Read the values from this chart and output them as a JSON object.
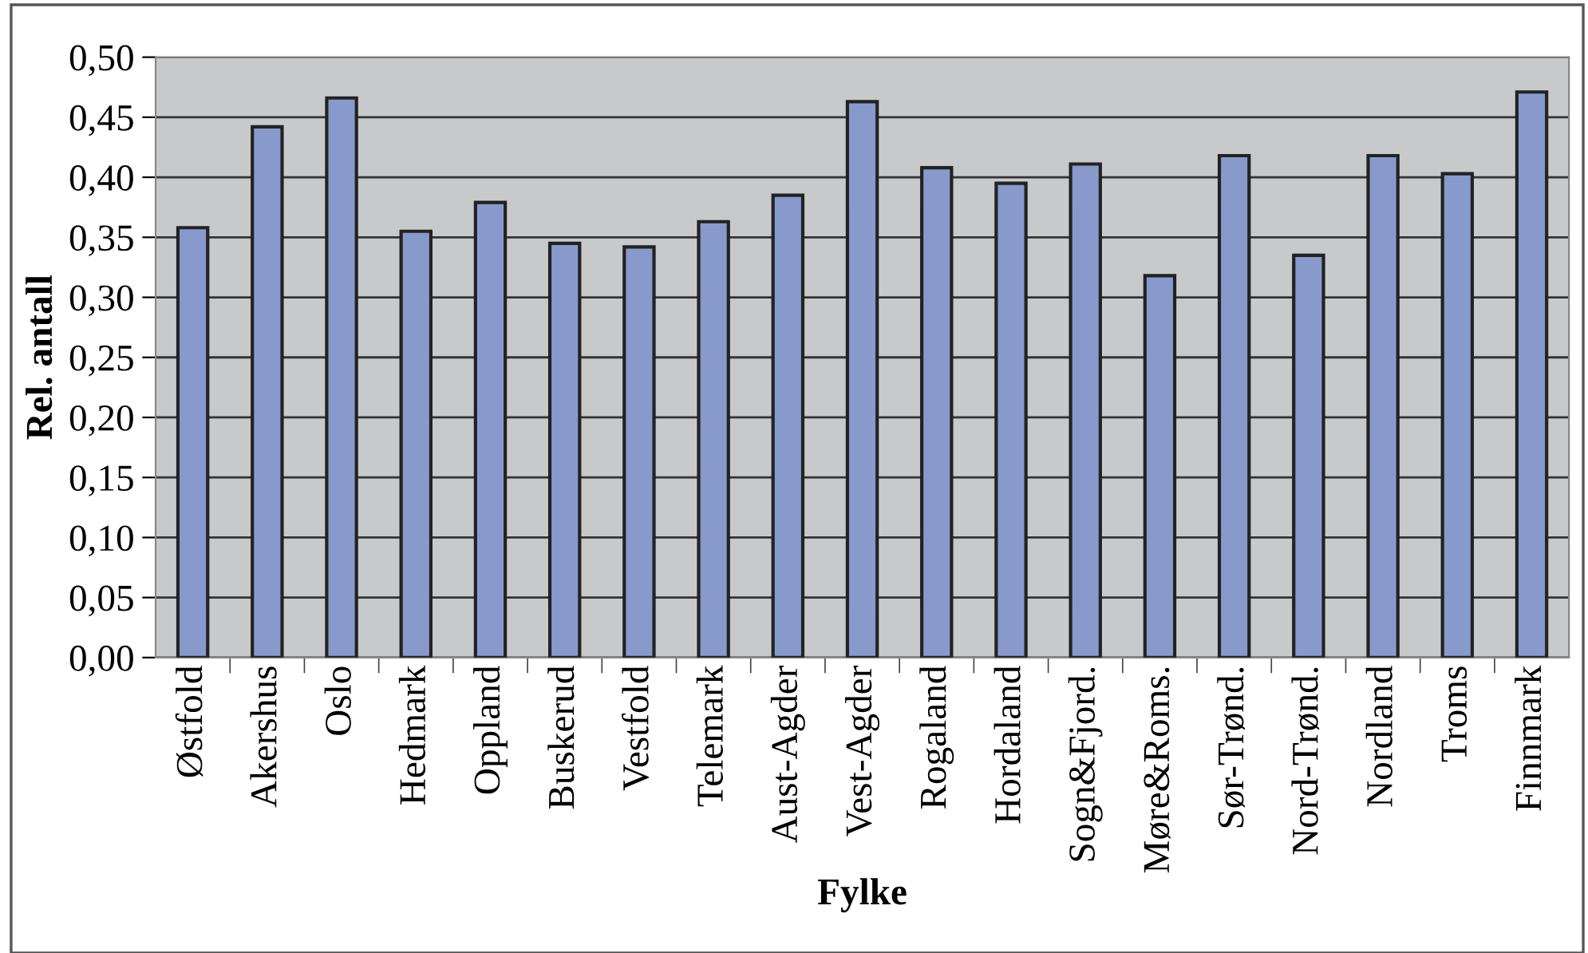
{
  "chart_data": {
    "type": "bar",
    "xlabel": "Fylke",
    "ylabel": "Rel. antall",
    "categories": [
      "Østfold",
      "Akershus",
      "Oslo",
      "Hedmark",
      "Oppland",
      "Buskerud",
      "Vestfold",
      "Telemark",
      "Aust-Agder",
      "Vest-Agder",
      "Rogaland",
      "Hordaland",
      "Sogn&Fjord.",
      "Møre&Roms.",
      "Sør-Trønd.",
      "Nord-Trønd.",
      "Nordland",
      "Troms",
      "Finnmark"
    ],
    "values": [
      0.358,
      0.442,
      0.466,
      0.355,
      0.379,
      0.345,
      0.342,
      0.363,
      0.385,
      0.463,
      0.408,
      0.395,
      0.411,
      0.318,
      0.418,
      0.335,
      0.418,
      0.403,
      0.471
    ],
    "color": "#8899cc",
    "ylim": [
      0,
      0.5
    ],
    "yticks": [
      {
        "value": 0,
        "label": "0,00"
      },
      {
        "value": 0.05,
        "label": "0,05"
      },
      {
        "value": 0.1,
        "label": "0,10"
      },
      {
        "value": 0.15,
        "label": "0,15"
      },
      {
        "value": 0.2,
        "label": "0,20"
      },
      {
        "value": 0.25,
        "label": "0,25"
      },
      {
        "value": 0.3,
        "label": "0,30"
      },
      {
        "value": 0.35,
        "label": "0,35"
      },
      {
        "value": 0.4,
        "label": "0,40"
      },
      {
        "value": 0.45,
        "label": "0,45"
      },
      {
        "value": 0.5,
        "label": "0,50"
      }
    ],
    "grid": "y"
  }
}
